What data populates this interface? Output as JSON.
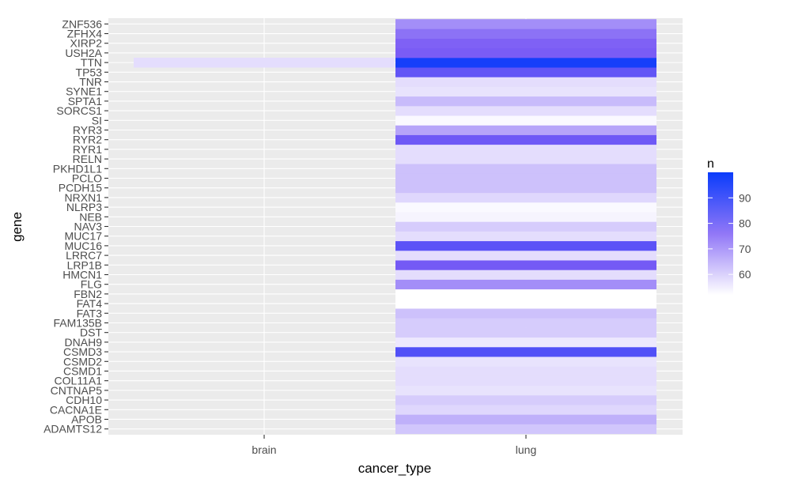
{
  "chart_data": {
    "type": "heatmap",
    "xlabel": "cancer_type",
    "ylabel": "gene",
    "x_categories": [
      "brain",
      "lung"
    ],
    "y_categories": [
      "ADAMTS12",
      "APOB",
      "CACNA1E",
      "CDH10",
      "CNTNAP5",
      "COL11A1",
      "CSMD1",
      "CSMD2",
      "CSMD3",
      "DNAH9",
      "DST",
      "FAM135B",
      "FAT3",
      "FAT4",
      "FBN2",
      "FLG",
      "HMCN1",
      "LRP1B",
      "LRRC7",
      "MUC16",
      "MUC17",
      "NAV3",
      "NEB",
      "NLRP3",
      "NRXN1",
      "PCDH15",
      "PCLO",
      "PKHD1L1",
      "RELN",
      "RYR1",
      "RYR2",
      "RYR3",
      "SI",
      "SORCS1",
      "SPTA1",
      "SYNE1",
      "TNR",
      "TP53",
      "TTN",
      "USH2A",
      "XIRP2",
      "ZFHX4",
      "ZNF536"
    ],
    "cells": [
      {
        "x": "brain",
        "y": "TTN",
        "n": 58
      },
      {
        "x": "lung",
        "y": "ADAMTS12",
        "n": 62
      },
      {
        "x": "lung",
        "y": "APOB",
        "n": 66
      },
      {
        "x": "lung",
        "y": "CACNA1E",
        "n": 59
      },
      {
        "x": "lung",
        "y": "CDH10",
        "n": 61
      },
      {
        "x": "lung",
        "y": "CNTNAP5",
        "n": 57
      },
      {
        "x": "lung",
        "y": "COL11A1",
        "n": 58
      },
      {
        "x": "lung",
        "y": "CSMD1",
        "n": 58
      },
      {
        "x": "lung",
        "y": "CSMD2",
        "n": 57
      },
      {
        "x": "lung",
        "y": "CSMD3",
        "n": 88
      },
      {
        "x": "lung",
        "y": "DNAH9",
        "n": 56
      },
      {
        "x": "lung",
        "y": "DST",
        "n": 61
      },
      {
        "x": "lung",
        "y": "FAM135B",
        "n": 61
      },
      {
        "x": "lung",
        "y": "FAT3",
        "n": 63
      },
      {
        "x": "lung",
        "y": "FAT4",
        "n": 52
      },
      {
        "x": "lung",
        "y": "FBN2",
        "n": 52
      },
      {
        "x": "lung",
        "y": "FLG",
        "n": 72
      },
      {
        "x": "lung",
        "y": "HMCN1",
        "n": 58
      },
      {
        "x": "lung",
        "y": "LRP1B",
        "n": 82
      },
      {
        "x": "lung",
        "y": "LRRC7",
        "n": 58
      },
      {
        "x": "lung",
        "y": "MUC16",
        "n": 86
      },
      {
        "x": "lung",
        "y": "MUC17",
        "n": 58
      },
      {
        "x": "lung",
        "y": "NAV3",
        "n": 61
      },
      {
        "x": "lung",
        "y": "NEB",
        "n": 54
      },
      {
        "x": "lung",
        "y": "NLRP3",
        "n": 53
      },
      {
        "x": "lung",
        "y": "NRXN1",
        "n": 59
      },
      {
        "x": "lung",
        "y": "PCDH15",
        "n": 63
      },
      {
        "x": "lung",
        "y": "PCLO",
        "n": 63
      },
      {
        "x": "lung",
        "y": "PKHD1L1",
        "n": 63
      },
      {
        "x": "lung",
        "y": "RELN",
        "n": 58
      },
      {
        "x": "lung",
        "y": "RYR1",
        "n": 58
      },
      {
        "x": "lung",
        "y": "RYR2",
        "n": 83
      },
      {
        "x": "lung",
        "y": "RYR3",
        "n": 68
      },
      {
        "x": "lung",
        "y": "SI",
        "n": 53
      },
      {
        "x": "lung",
        "y": "SORCS1",
        "n": 58
      },
      {
        "x": "lung",
        "y": "SPTA1",
        "n": 64
      },
      {
        "x": "lung",
        "y": "SYNE1",
        "n": 57
      },
      {
        "x": "lung",
        "y": "TNR",
        "n": 58
      },
      {
        "x": "lung",
        "y": "TP53",
        "n": 85
      },
      {
        "x": "lung",
        "y": "TTN",
        "n": 98
      },
      {
        "x": "lung",
        "y": "USH2A",
        "n": 81
      },
      {
        "x": "lung",
        "y": "XIRP2",
        "n": 80
      },
      {
        "x": "lung",
        "y": "ZFHX4",
        "n": 77
      },
      {
        "x": "lung",
        "y": "ZNF536",
        "n": 72
      }
    ],
    "legend": {
      "title": "n",
      "breaks": [
        60,
        70,
        80,
        90
      ],
      "range": [
        52,
        100
      ],
      "low_color": "#ffffff",
      "mid_color": "#7b5cf5",
      "high_color": "#0a3cfb",
      "position": "right"
    },
    "grid": true,
    "panel_background": "#ebebeb"
  }
}
